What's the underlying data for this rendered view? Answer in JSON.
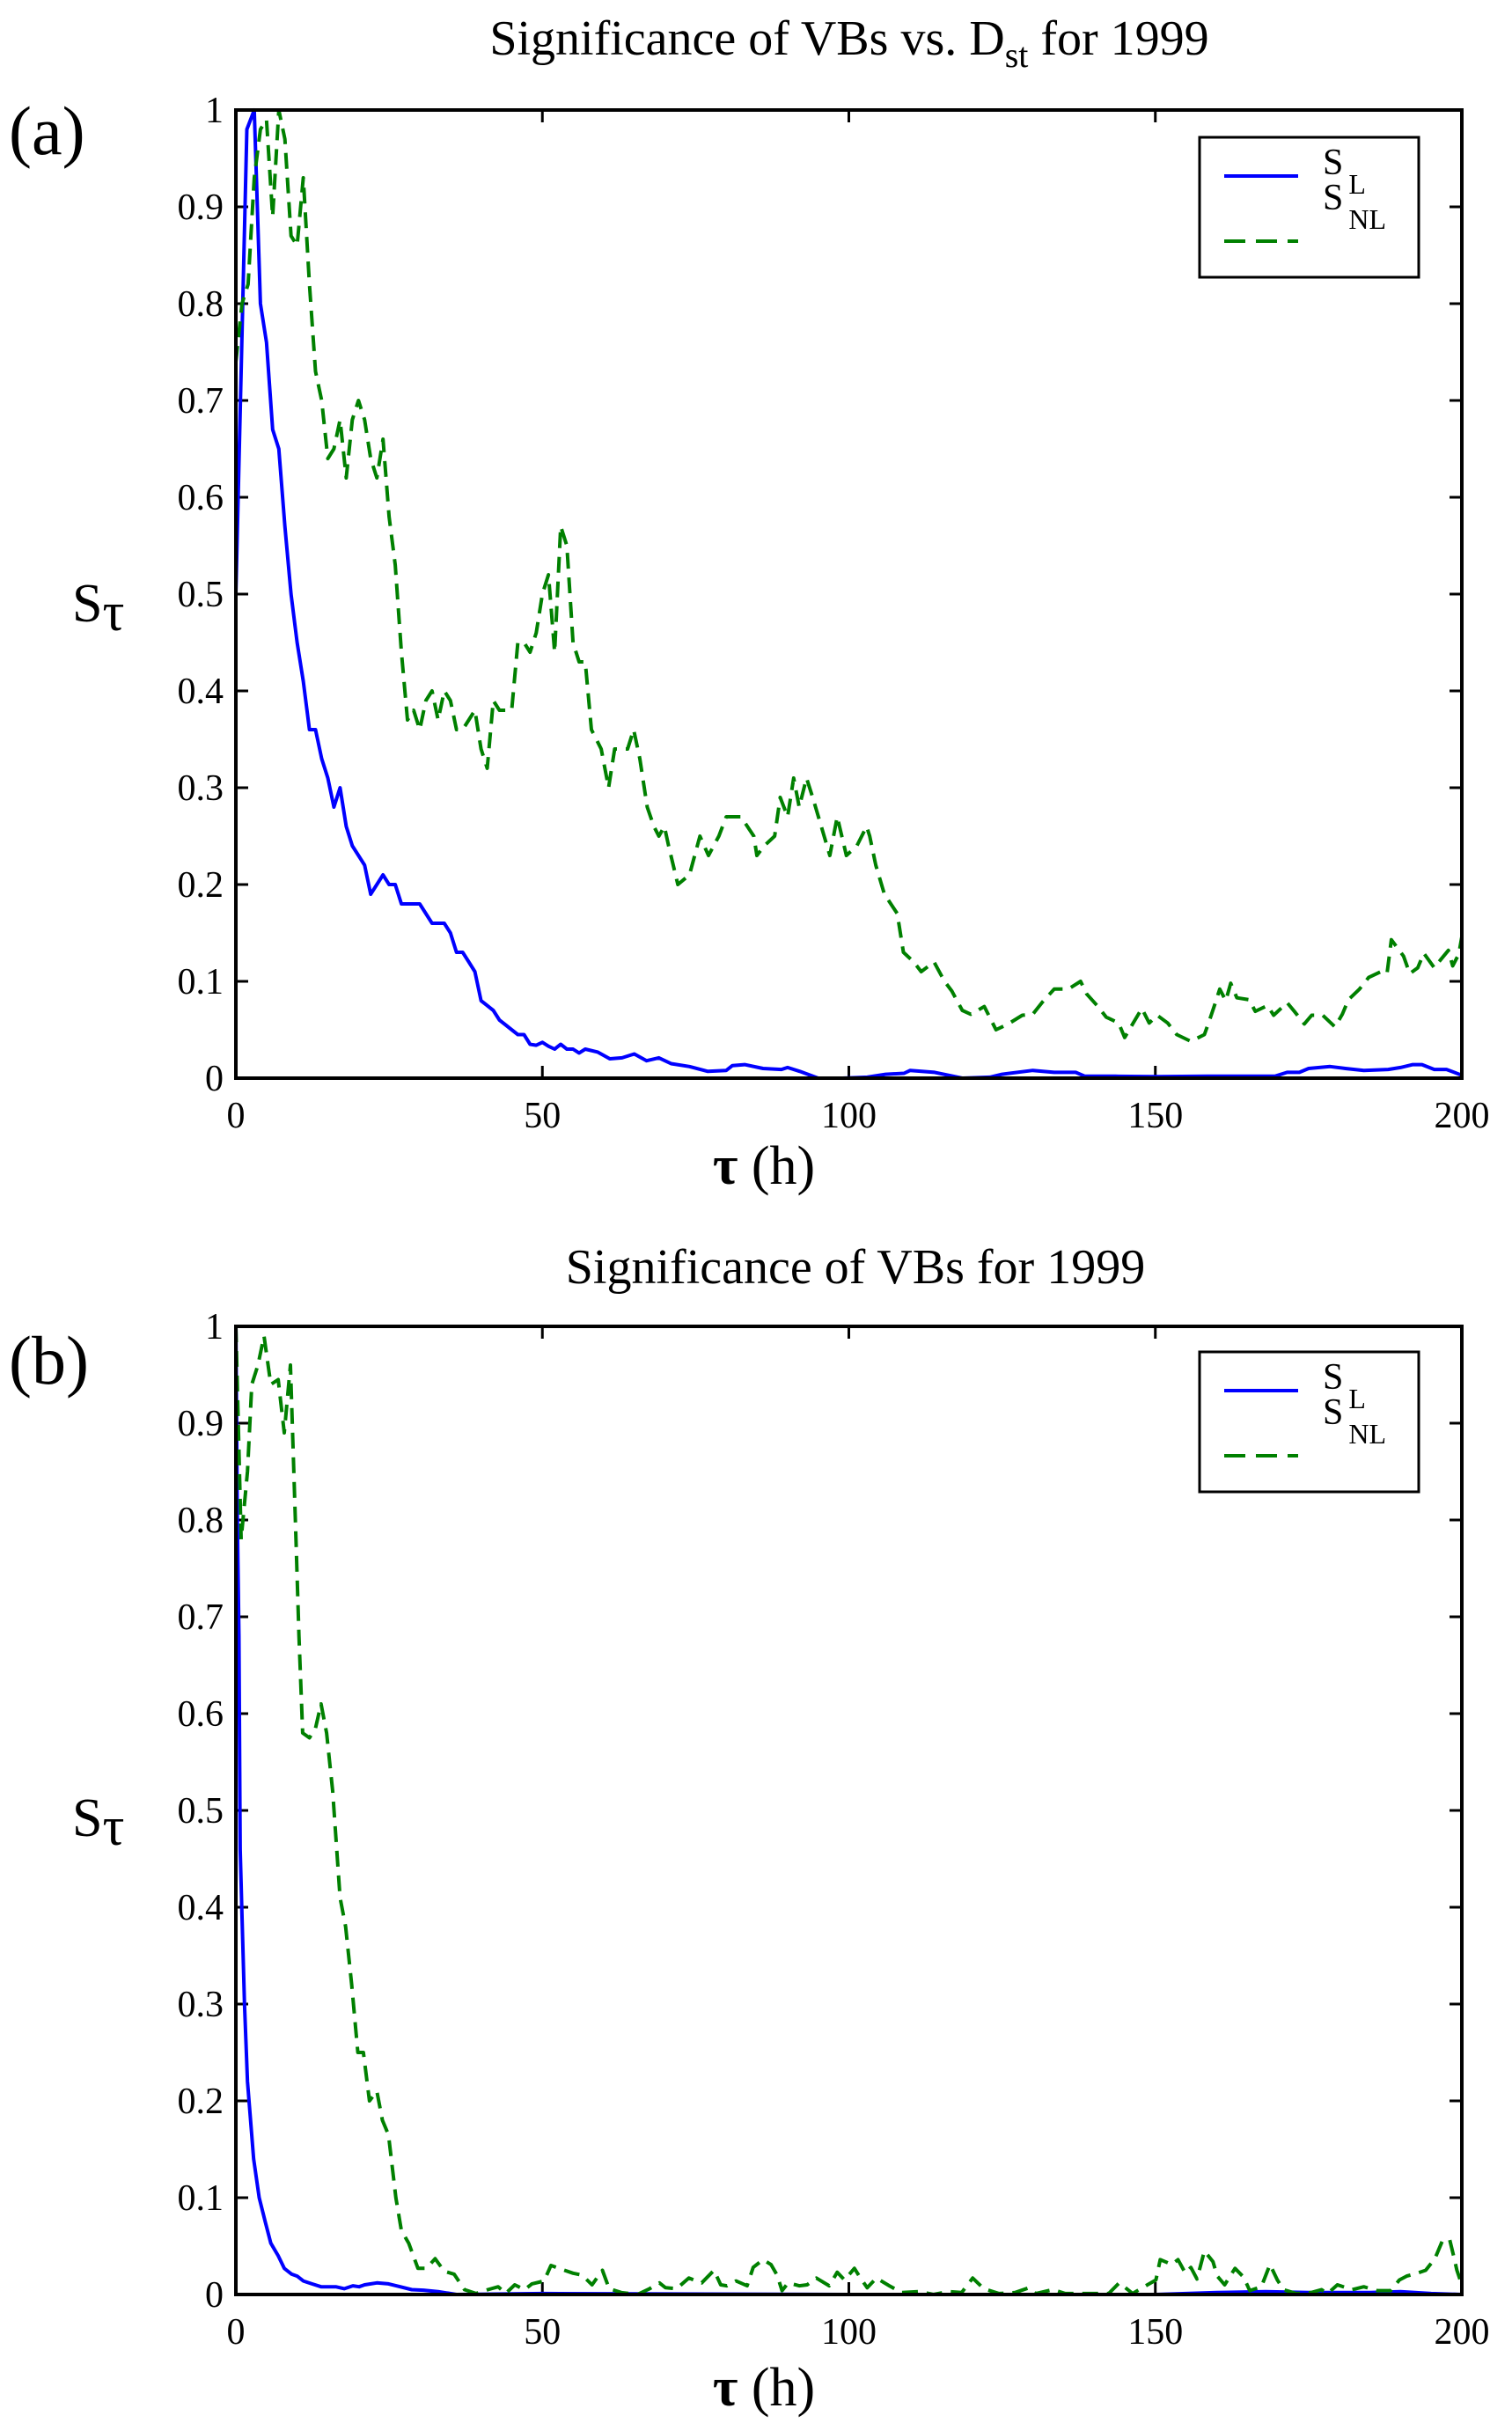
{
  "chart_data": [
    {
      "type": "line",
      "panel_label": "(a)",
      "title": "Significance of VBs vs. D",
      "title_subscript": "st",
      "title_suffix": " for 1999",
      "xlabel_symbol": "τ",
      "xlabel_unit": " (h)",
      "ylabel": "S",
      "ylabel_subscript": "τ",
      "xlim": [
        0,
        200
      ],
      "ylim": [
        0,
        1
      ],
      "xticks": [
        "0",
        "50",
        "100",
        "150",
        "200"
      ],
      "xtick_values": [
        0,
        50,
        100,
        150,
        200
      ],
      "yticks": [
        "0",
        "0.1",
        "0.2",
        "0.3",
        "0.4",
        "0.5",
        "0.6",
        "0.7",
        "0.8",
        "0.9",
        "1"
      ],
      "ytick_values": [
        0,
        0.1,
        0.2,
        0.3,
        0.4,
        0.5,
        0.6,
        0.7,
        0.8,
        0.9,
        1
      ],
      "legend_position": "top-right",
      "series": [
        {
          "name": "S",
          "name_subscript": "L",
          "color": "#0000ff",
          "style": "solid",
          "x": [
            0,
            1.8,
            3,
            4,
            5,
            6,
            7,
            8,
            9,
            10,
            11,
            12,
            13,
            14,
            15,
            16,
            17,
            18,
            19,
            20,
            21,
            22,
            23,
            24,
            25,
            26,
            27,
            28,
            29,
            30,
            31,
            32,
            33,
            34,
            35,
            36,
            37,
            38,
            39,
            40,
            41,
            42,
            43,
            44,
            45,
            46,
            47,
            48,
            49,
            50,
            51,
            52,
            53,
            54,
            55,
            56,
            57,
            59,
            61,
            63,
            65,
            67,
            69,
            71,
            74,
            77,
            80,
            81,
            83,
            86,
            89,
            90,
            92,
            95,
            99,
            103,
            106,
            109,
            110,
            114,
            118.5,
            123,
            125,
            130,
            133.5,
            137,
            138.5,
            143.5,
            150,
            158.5,
            163.5,
            169.5,
            171.5,
            173.5,
            175,
            178.5,
            181,
            184,
            188,
            190,
            192,
            193.5,
            195.5,
            197.5,
            200
          ],
          "y": [
            0.5,
            0.98,
            1.0,
            0.8,
            0.76,
            0.67,
            0.65,
            0.57,
            0.5,
            0.45,
            0.41,
            0.36,
            0.36,
            0.33,
            0.31,
            0.28,
            0.3,
            0.26,
            0.24,
            0.23,
            0.22,
            0.19,
            0.2,
            0.21,
            0.2,
            0.2,
            0.18,
            0.18,
            0.18,
            0.18,
            0.17,
            0.16,
            0.16,
            0.16,
            0.15,
            0.13,
            0.13,
            0.12,
            0.11,
            0.08,
            0.075,
            0.07,
            0.06,
            0.055,
            0.05,
            0.045,
            0.045,
            0.035,
            0.034,
            0.037,
            0.033,
            0.03,
            0.035,
            0.03,
            0.03,
            0.026,
            0.03,
            0.027,
            0.02,
            0.021,
            0.025,
            0.018,
            0.021,
            0.015,
            0.012,
            0.007,
            0.008,
            0.013,
            0.014,
            0.01,
            0.009,
            0.011,
            0.007,
            0.0,
            0.0,
            0.001,
            0.004,
            0.005,
            0.008,
            0.006,
            0.0,
            0.001,
            0.004,
            0.008,
            0.006,
            0.006,
            0.002,
            0.002,
            0.0015,
            0.002,
            0.002,
            0.002,
            0.006,
            0.006,
            0.01,
            0.012,
            0.01,
            0.008,
            0.009,
            0.011,
            0.014,
            0.014,
            0.009,
            0.009,
            0.003
          ]
        },
        {
          "name": "S",
          "name_subscript": "NL",
          "color": "#008000",
          "style": "dashed",
          "x": [
            0,
            1,
            2,
            3,
            4,
            5,
            6,
            7,
            8,
            9,
            10,
            11,
            12,
            13,
            14,
            15,
            16,
            17,
            18,
            19,
            20,
            21,
            22,
            23,
            24,
            25,
            26,
            27,
            28,
            29,
            30,
            31,
            32,
            33,
            34,
            35,
            36,
            37,
            38,
            39,
            40,
            41,
            42,
            43,
            44,
            45,
            46,
            47,
            48,
            49,
            50,
            51,
            52,
            53,
            54,
            55,
            56,
            57,
            58,
            59.6,
            60.8,
            61.8,
            63.9,
            64.9,
            65.9,
            67.1,
            68.2,
            69.0,
            69.9,
            70.6,
            72.1,
            74.0,
            75.7,
            77.1,
            78.8,
            80.0,
            82.4,
            84.5,
            85.0,
            86.2,
            87.9,
            88.8,
            90.0,
            91.0,
            91.9,
            93.1,
            94.1,
            95.5,
            96.9,
            98.1,
            99.6,
            101.3,
            102.9,
            103.4,
            104.4,
            105.8,
            107.9,
            108.9,
            110.6,
            111.8,
            113.9,
            115.6,
            116.8,
            118.5,
            119.9,
            122.1,
            124.0,
            126.0,
            128.3,
            130.0,
            131.5,
            133.5,
            135.8,
            137.8,
            138.8,
            140.5,
            142.0,
            144.0,
            145.0,
            146.3,
            147.8,
            149.0,
            150.3,
            152.0,
            153.5,
            155.8,
            158.0,
            158.8,
            159.8,
            160.5,
            161.5,
            162.3,
            163.3,
            165.3,
            166.3,
            168.3,
            169.3,
            171.5,
            172.8,
            174.3,
            175.5,
            177.3,
            179.3,
            180.5,
            181.5,
            183.3,
            184.8,
            186.8,
            187.8,
            188.5,
            190.5,
            191.5,
            192.8,
            193.8,
            195.5,
            196.5,
            197.8,
            198.5,
            199.5,
            200
          ],
          "y": [
            0.74,
            0.8,
            0.82,
            0.93,
            0.98,
            0.99,
            0.89,
            1.0,
            0.97,
            0.87,
            0.86,
            0.93,
            0.82,
            0.73,
            0.7,
            0.64,
            0.65,
            0.68,
            0.62,
            0.68,
            0.7,
            0.68,
            0.64,
            0.62,
            0.66,
            0.58,
            0.53,
            0.44,
            0.37,
            0.38,
            0.36,
            0.39,
            0.4,
            0.37,
            0.4,
            0.39,
            0.36,
            0.36,
            0.37,
            0.38,
            0.34,
            0.32,
            0.39,
            0.38,
            0.38,
            0.38,
            0.45,
            0.45,
            0.44,
            0.46,
            0.5,
            0.52,
            0.44,
            0.57,
            0.55,
            0.45,
            0.43,
            0.43,
            0.36,
            0.34,
            0.3,
            0.34,
            0.34,
            0.36,
            0.33,
            0.28,
            0.26,
            0.25,
            0.26,
            0.24,
            0.2,
            0.21,
            0.25,
            0.23,
            0.25,
            0.27,
            0.27,
            0.25,
            0.23,
            0.24,
            0.25,
            0.29,
            0.27,
            0.31,
            0.28,
            0.31,
            0.29,
            0.26,
            0.23,
            0.27,
            0.23,
            0.24,
            0.26,
            0.25,
            0.22,
            0.19,
            0.17,
            0.13,
            0.12,
            0.11,
            0.12,
            0.1,
            0.09,
            0.07,
            0.066,
            0.074,
            0.05,
            0.056,
            0.065,
            0.066,
            0.078,
            0.092,
            0.092,
            0.1,
            0.087,
            0.075,
            0.063,
            0.057,
            0.042,
            0.056,
            0.072,
            0.057,
            0.065,
            0.057,
            0.045,
            0.038,
            0.045,
            0.059,
            0.078,
            0.092,
            0.08,
            0.098,
            0.083,
            0.081,
            0.069,
            0.075,
            0.065,
            0.078,
            0.068,
            0.056,
            0.065,
            0.065,
            0.053,
            0.066,
            0.081,
            0.092,
            0.104,
            0.11,
            0.108,
            0.143,
            0.126,
            0.108,
            0.114,
            0.129,
            0.114,
            0.122,
            0.132,
            0.116,
            0.128,
            0.146
          ]
        }
      ]
    },
    {
      "type": "line",
      "panel_label": "(b)",
      "title": "Significance of VBs for 1999",
      "xlabel_symbol": "τ",
      "xlabel_unit": " (h)",
      "ylabel": "S",
      "ylabel_subscript": "τ",
      "xlim": [
        0,
        200
      ],
      "ylim": [
        0,
        1
      ],
      "xticks": [
        "0",
        "50",
        "100",
        "150",
        "200"
      ],
      "xtick_values": [
        0,
        50,
        100,
        150,
        200
      ],
      "yticks": [
        "0",
        "0.1",
        "0.2",
        "0.3",
        "0.4",
        "0.5",
        "0.6",
        "0.7",
        "0.8",
        "0.9",
        "1"
      ],
      "ytick_values": [
        0,
        0.1,
        0.2,
        0.3,
        0.4,
        0.5,
        0.6,
        0.7,
        0.8,
        0.9,
        1
      ],
      "legend_position": "top-right",
      "series": [
        {
          "name": "S",
          "name_subscript": "L",
          "color": "#0000ff",
          "style": "solid",
          "x": [
            0,
            0.24,
            0.5,
            0.7,
            1.0,
            1.4,
            1.9,
            2.9,
            3.8,
            4.8,
            5.7,
            6.9,
            7.9,
            9.1,
            10,
            11,
            12.4,
            13.9,
            16.3,
            17.7,
            19.1,
            20.1,
            21,
            23,
            24.9,
            26.8,
            28.7,
            30.6,
            33,
            36,
            50,
            100,
            150,
            160,
            168,
            175,
            185,
            190,
            195,
            200
          ],
          "y": [
            1.0,
            0.8,
            0.68,
            0.46,
            0.39,
            0.3,
            0.22,
            0.14,
            0.1,
            0.075,
            0.053,
            0.04,
            0.027,
            0.021,
            0.019,
            0.014,
            0.011,
            0.008,
            0.008,
            0.006,
            0.009,
            0.008,
            0.01,
            0.012,
            0.011,
            0.008,
            0.005,
            0.0045,
            0.003,
            0.0,
            0.001,
            0.0,
            0.0,
            0.002,
            0.003,
            0.002,
            0.002,
            0.003,
            0.001,
            0.0
          ]
        },
        {
          "name": "S",
          "name_subscript": "NL",
          "color": "#008000",
          "style": "dashed",
          "x": [
            0,
            0.86,
            1.9,
            2.6,
            3.6,
            4.6,
            5.7,
            6.9,
            7.9,
            8.9,
            9.3,
            9.8,
            10.3,
            10.9,
            12,
            13,
            13.9,
            14.8,
            15.8,
            17,
            17.9,
            18.9,
            19.9,
            20.8,
            21.8,
            23,
            23.9,
            24.9,
            26.1,
            27,
            28.2,
            29.7,
            31.1,
            32.5,
            34,
            35.6,
            37.3,
            39.2,
            41.1,
            42.8,
            44,
            45.5,
            47.1,
            48.3,
            50.3,
            51.4,
            52.7,
            55,
            56.5,
            58.1,
            59.8,
            60.9,
            62.9,
            65.5,
            67.5,
            69.1,
            70.1,
            71.9,
            73.9,
            76,
            78,
            79.1,
            80.1,
            81.6,
            83.4,
            84.4,
            86,
            87.3,
            88.3,
            89.1,
            90.1,
            91.9,
            93.2,
            94.7,
            96.8,
            98.1,
            99.3,
            100.9,
            101.9,
            103,
            104.5,
            106.6,
            108.6,
            111.5,
            113.8,
            116.3,
            118.4,
            120.2,
            122,
            124.5,
            127.1,
            129.4,
            130.5,
            133.3,
            135.3,
            138.1,
            140.5,
            142.4,
            144.1,
            146.3,
            147.9,
            150.1,
            150.8,
            152.7,
            153.7,
            154.9,
            155.8,
            156.8,
            158,
            159.4,
            160.1,
            161.3,
            163,
            164.4,
            165.4,
            167.3,
            168.7,
            169.9,
            170.9,
            173,
            175.4,
            177.1,
            178.1,
            179.7,
            182.1,
            184,
            186.2,
            188.4,
            189.8,
            191,
            192.7,
            194.1,
            195.6,
            196.8,
            198,
            198.7,
            199.2,
            200
          ],
          "y": [
            1.0,
            0.78,
            0.85,
            0.94,
            0.96,
            0.99,
            0.94,
            0.945,
            0.89,
            0.96,
            0.88,
            0.78,
            0.68,
            0.58,
            0.575,
            0.585,
            0.61,
            0.58,
            0.52,
            0.41,
            0.38,
            0.32,
            0.25,
            0.25,
            0.2,
            0.21,
            0.18,
            0.165,
            0.1,
            0.066,
            0.053,
            0.027,
            0.027,
            0.037,
            0.024,
            0.021,
            0.005,
            0.001,
            0.005,
            0.008,
            0.001,
            0.01,
            0.005,
            0.011,
            0.014,
            0.03,
            0.027,
            0.022,
            0.02,
            0.01,
            0.025,
            0.006,
            0.002,
            0.0,
            0.006,
            0.012,
            0.007,
            0.006,
            0.017,
            0.012,
            0.025,
            0.01,
            0.009,
            0.014,
            0.009,
            0.028,
            0.036,
            0.031,
            0.02,
            0.004,
            0.012,
            0.009,
            0.01,
            0.017,
            0.009,
            0.023,
            0.015,
            0.027,
            0.017,
            0.007,
            0.017,
            0.009,
            0.002,
            0.003,
            0.0,
            0.003,
            0.002,
            0.017,
            0.006,
            0.001,
            0.002,
            0.007,
            0.001,
            0.005,
            0.001,
            0.001,
            0.001,
            0.001,
            0.012,
            0.001,
            0.007,
            0.015,
            0.036,
            0.031,
            0.036,
            0.022,
            0.028,
            0.016,
            0.045,
            0.034,
            0.019,
            0.01,
            0.027,
            0.018,
            0.004,
            0.008,
            0.031,
            0.015,
            0.005,
            0.001,
            0.002,
            0.005,
            0.001,
            0.01,
            0.005,
            0.008,
            0.004,
            0.004,
            0.015,
            0.019,
            0.022,
            0.025,
            0.037,
            0.055,
            0.057,
            0.039,
            0.025,
            0.01
          ]
        }
      ]
    }
  ]
}
